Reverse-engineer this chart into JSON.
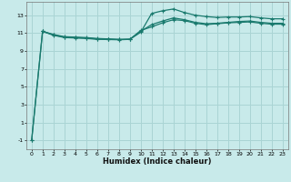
{
  "title": "",
  "xlabel": "Humidex (Indice chaleur)",
  "background_color": "#c8eaea",
  "grid_color": "#aad4d4",
  "line_color": "#1a7a6e",
  "xlim": [
    -0.5,
    23.5
  ],
  "ylim": [
    -2,
    14.5
  ],
  "yticks": [
    -1,
    1,
    3,
    5,
    7,
    9,
    11,
    13
  ],
  "xticks": [
    0,
    1,
    2,
    3,
    4,
    5,
    6,
    7,
    8,
    9,
    10,
    11,
    12,
    13,
    14,
    15,
    16,
    17,
    18,
    19,
    20,
    21,
    22,
    23
  ],
  "series1_x": [
    0,
    1,
    2,
    3,
    4,
    5,
    6,
    7,
    8,
    9,
    10,
    11,
    12,
    13,
    14,
    15,
    16,
    17,
    18,
    19,
    20,
    21,
    22,
    23
  ],
  "series1_y": [
    -1.0,
    11.2,
    10.85,
    10.6,
    10.55,
    10.5,
    10.4,
    10.35,
    10.3,
    10.3,
    11.1,
    13.2,
    13.5,
    13.7,
    13.3,
    13.0,
    12.85,
    12.75,
    12.8,
    12.8,
    12.85,
    12.7,
    12.6,
    12.6
  ],
  "series2_x": [
    0,
    1,
    2,
    3,
    4,
    5,
    6,
    7,
    8,
    9,
    10,
    11,
    12,
    13,
    14,
    15,
    16,
    17,
    18,
    19,
    20,
    21,
    22,
    23
  ],
  "series2_y": [
    -1.0,
    11.2,
    10.75,
    10.5,
    10.45,
    10.4,
    10.3,
    10.28,
    10.25,
    10.3,
    11.3,
    11.7,
    12.15,
    12.5,
    12.4,
    12.1,
    11.95,
    12.05,
    12.15,
    12.2,
    12.25,
    12.1,
    12.0,
    12.0
  ],
  "series3_x": [
    1,
    2,
    3,
    4,
    5,
    6,
    7,
    8,
    9,
    10,
    11,
    12,
    13,
    14,
    15,
    16,
    17,
    18,
    19,
    20,
    21,
    22,
    23
  ],
  "series3_y": [
    11.2,
    10.8,
    10.55,
    10.5,
    10.45,
    10.35,
    10.32,
    10.28,
    10.32,
    11.2,
    11.95,
    12.35,
    12.7,
    12.5,
    12.2,
    12.05,
    12.1,
    12.2,
    12.3,
    12.35,
    12.2,
    12.1,
    12.1
  ]
}
